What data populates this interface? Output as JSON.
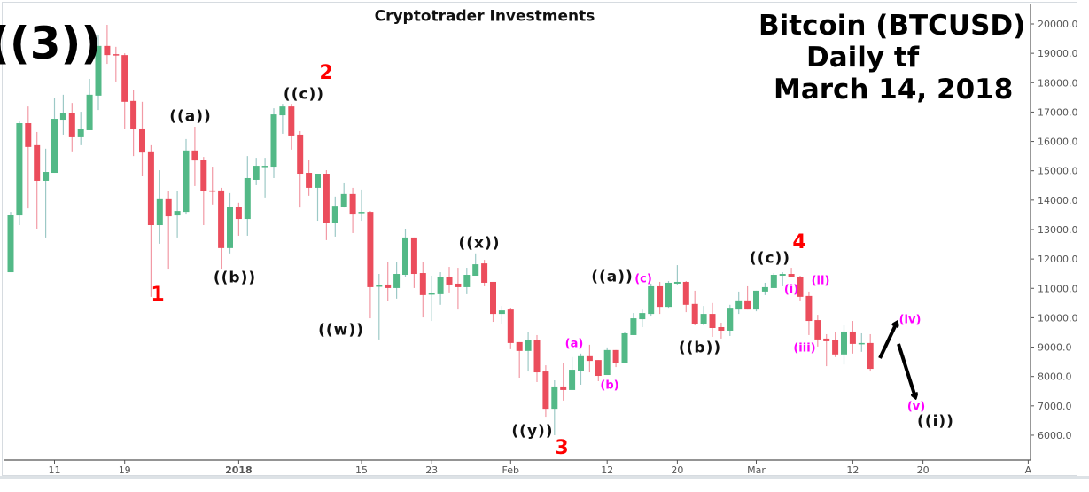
{
  "header": {
    "title": "Cryptotrader Investments",
    "asset": "Bitcoin (BTCUSD)",
    "timeframe": "Daily tf",
    "date": "March 14, 2018"
  },
  "annotations": {
    "wave_3_degree": "((3))",
    "red": {
      "w1": "1",
      "w2": "2",
      "w3": "3",
      "w4": "4"
    },
    "black": {
      "a1": "((a))",
      "b1": "((b))",
      "c1": "((c))",
      "w": "((w))",
      "x": "((x))",
      "y": "((y))",
      "a2": "((a))",
      "b2": "((b))",
      "c2": "((c))",
      "i": "((i))"
    },
    "magenta": {
      "a": "(a)",
      "b": "(b)",
      "c": "(c)",
      "i": "(i)",
      "ii": "(ii)",
      "iii": "(iii)",
      "iv": "(iv)",
      "v": "(v)"
    }
  },
  "colors": {
    "up": "#53b987",
    "down": "#eb4d5c",
    "up_wick": "#9cc9c6",
    "down_wick": "#f29aa5",
    "wave_red": "#ff0000",
    "wave_magenta": "#ff00ff"
  },
  "chart_data": {
    "type": "candlestick",
    "title": "Cryptotrader Investments",
    "start_date": "2017-12-06",
    "columns": [
      "open",
      "high",
      "low",
      "close"
    ],
    "ylim": [
      5200,
      20500
    ],
    "y_ticks": [
      6000,
      7000,
      8000,
      9000,
      10000,
      11000,
      12000,
      13000,
      14000,
      15000,
      16000,
      17000,
      18000,
      19000,
      20000
    ],
    "y_tick_labels": [
      "6000.0",
      "7000.0",
      "8000.0",
      "9000.0",
      "10000.0",
      "11000.0",
      "12000.0",
      "13000.0",
      "14000.0",
      "15000.0",
      "16000.0",
      "17000.0",
      "18000.0",
      "19000.0",
      "20000.0"
    ],
    "x_ticks": [
      {
        "day_index": 5,
        "label": "11"
      },
      {
        "day_index": 13,
        "label": "19"
      },
      {
        "day_index": 26,
        "label": "2018"
      },
      {
        "day_index": 40,
        "label": "15"
      },
      {
        "day_index": 48,
        "label": "23"
      },
      {
        "day_index": 57,
        "label": "Feb"
      },
      {
        "day_index": 68,
        "label": "12"
      },
      {
        "day_index": 76,
        "label": "20"
      },
      {
        "day_index": 85,
        "label": "Mar"
      },
      {
        "day_index": 96,
        "label": "12"
      },
      {
        "day_index": 104,
        "label": "20"
      },
      {
        "day_index": 116,
        "label": "A"
      }
    ],
    "xlim": [
      -1,
      116.5
    ],
    "candles": [
      [
        11550,
        13600,
        11550,
        13510
      ],
      [
        13480,
        16680,
        13150,
        16620
      ],
      [
        16620,
        17190,
        13720,
        15810
      ],
      [
        15870,
        16320,
        13030,
        14660
      ],
      [
        14660,
        15750,
        12730,
        14960
      ],
      [
        14930,
        17470,
        14930,
        16770
      ],
      [
        16740,
        17590,
        16230,
        16980
      ],
      [
        16980,
        17310,
        15660,
        16170
      ],
      [
        16170,
        17010,
        15870,
        16410
      ],
      [
        16380,
        18130,
        16380,
        17590
      ],
      [
        17560,
        19610,
        17070,
        19250
      ],
      [
        19250,
        19970,
        18640,
        18940
      ],
      [
        18970,
        19220,
        18040,
        18940
      ],
      [
        18940,
        19000,
        16410,
        17350
      ],
      [
        17380,
        17740,
        15500,
        16410
      ],
      [
        16440,
        17350,
        14810,
        15620
      ],
      [
        15660,
        15870,
        10710,
        13150
      ],
      [
        13150,
        15020,
        12520,
        14060
      ],
      [
        14060,
        14300,
        11640,
        13450
      ],
      [
        13480,
        14300,
        12730,
        13630
      ],
      [
        13600,
        16080,
        13540,
        15690
      ],
      [
        15690,
        16500,
        14480,
        15350
      ],
      [
        15380,
        15470,
        13150,
        14300
      ],
      [
        14330,
        15140,
        13850,
        14300
      ],
      [
        14330,
        14420,
        11640,
        12370
      ],
      [
        12370,
        14240,
        12190,
        13780
      ],
      [
        13780,
        13910,
        12790,
        13360
      ],
      [
        13360,
        15500,
        12790,
        14750
      ],
      [
        14690,
        15440,
        14510,
        15170
      ],
      [
        15140,
        15440,
        14090,
        15170
      ],
      [
        15140,
        17130,
        14750,
        16920
      ],
      [
        16890,
        17280,
        16260,
        17190
      ],
      [
        17190,
        17280,
        15720,
        16200
      ],
      [
        16230,
        16350,
        13750,
        14900
      ],
      [
        14930,
        15380,
        14150,
        14420
      ],
      [
        14420,
        14900,
        13300,
        14900
      ],
      [
        14900,
        15020,
        12640,
        13240
      ],
      [
        13240,
        14120,
        12760,
        13810
      ],
      [
        13780,
        14600,
        13750,
        14210
      ],
      [
        14210,
        14420,
        12880,
        13540
      ],
      [
        13570,
        14360,
        13300,
        13600
      ],
      [
        13600,
        13630,
        9980,
        11040
      ],
      [
        11070,
        11490,
        9260,
        11100
      ],
      [
        11130,
        11910,
        10560,
        11010
      ],
      [
        11010,
        11910,
        10650,
        11490
      ],
      [
        11460,
        13030,
        11400,
        12730
      ],
      [
        12730,
        12730,
        11010,
        11490
      ],
      [
        11520,
        11910,
        10010,
        10770
      ],
      [
        10800,
        11430,
        9890,
        10830
      ],
      [
        10800,
        11550,
        10440,
        11400
      ],
      [
        11400,
        11730,
        10860,
        11130
      ],
      [
        11160,
        11700,
        10280,
        11040
      ],
      [
        11040,
        11700,
        10800,
        11460
      ],
      [
        11430,
        12190,
        11430,
        11820
      ],
      [
        11850,
        11970,
        11070,
        11190
      ],
      [
        11220,
        11220,
        9860,
        10130
      ],
      [
        10130,
        10400,
        9770,
        10250
      ],
      [
        10280,
        10340,
        8930,
        9140
      ],
      [
        9170,
        9170,
        7960,
        8870
      ],
      [
        8870,
        9500,
        8170,
        9230
      ],
      [
        9230,
        9410,
        7810,
        8140
      ],
      [
        8170,
        8380,
        6630,
        6900
      ],
      [
        6900,
        7870,
        6000,
        7660
      ],
      [
        7660,
        8470,
        7180,
        7540
      ],
      [
        7540,
        8660,
        7540,
        8230
      ],
      [
        8200,
        8780,
        7720,
        8690
      ],
      [
        8690,
        9080,
        8140,
        8530
      ],
      [
        8560,
        8560,
        7840,
        8020
      ],
      [
        8050,
        8990,
        8050,
        8900
      ],
      [
        8900,
        8900,
        8320,
        8470
      ],
      [
        8470,
        9500,
        8470,
        9470
      ],
      [
        9410,
        10160,
        9410,
        9980
      ],
      [
        9950,
        10280,
        9680,
        10160
      ],
      [
        10130,
        11160,
        10040,
        11070
      ],
      [
        11070,
        11220,
        10130,
        10370
      ],
      [
        10370,
        11250,
        10310,
        11190
      ],
      [
        11160,
        11790,
        11130,
        11220
      ],
      [
        11220,
        11250,
        10190,
        10440
      ],
      [
        10470,
        10920,
        9740,
        9800
      ],
      [
        9800,
        10400,
        9740,
        10130
      ],
      [
        10130,
        10500,
        9350,
        9650
      ],
      [
        9680,
        9830,
        9290,
        9560
      ],
      [
        9560,
        10440,
        9380,
        10310
      ],
      [
        10280,
        10890,
        10130,
        10590
      ],
      [
        10590,
        11070,
        10280,
        10280
      ],
      [
        10280,
        10920,
        10220,
        10920
      ],
      [
        10890,
        11190,
        10770,
        11040
      ],
      [
        11010,
        11520,
        11010,
        11460
      ],
      [
        11430,
        11550,
        11070,
        11490
      ],
      [
        11490,
        11700,
        11370,
        11370
      ],
      [
        11400,
        11430,
        10560,
        10710
      ],
      [
        10740,
        10890,
        9410,
        9890
      ],
      [
        9920,
        10100,
        9020,
        9260
      ],
      [
        9290,
        9440,
        8350,
        9200
      ],
      [
        9230,
        9500,
        8660,
        8750
      ],
      [
        8750,
        9740,
        8410,
        9530
      ],
      [
        9530,
        9890,
        8780,
        9110
      ],
      [
        9110,
        9470,
        8840,
        9140
      ],
      [
        9140,
        9440,
        8170,
        8260
      ]
    ],
    "projection": {
      "iv_target": 10000,
      "v_target": 7200
    }
  }
}
